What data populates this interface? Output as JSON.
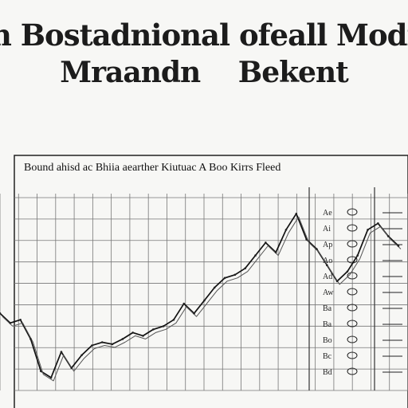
{
  "header": {
    "title_line_1": "n Bostadnional ofeall Modit",
    "title_line_2_left": "Mraandn",
    "title_line_2_right": "Bekent"
  },
  "chart_data": {
    "type": "line",
    "title": "Bound ahisd ac Bhiia aearther Kiutuac A Boo Kirrs Fleed",
    "grid": true,
    "x": [
      0,
      1,
      2,
      3,
      4,
      5,
      6,
      7,
      8,
      9,
      10,
      11,
      12,
      13,
      14,
      15,
      16,
      17,
      18,
      19,
      20,
      21,
      22,
      23,
      24,
      25,
      26,
      27,
      28,
      29,
      30,
      31,
      32,
      33,
      34,
      35,
      36,
      37,
      38,
      39
    ],
    "series": [
      {
        "values": [
          120,
          105,
          110,
          80,
          30,
          20,
          60,
          35,
          55,
          70,
          75,
          72,
          80,
          90,
          85,
          95,
          100,
          110,
          135,
          120,
          140,
          160,
          175,
          180,
          190,
          210,
          230,
          215,
          250,
          275,
          235,
          220,
          195,
          170,
          185,
          210,
          250,
          260,
          240,
          225
        ]
      }
    ],
    "ylim": [
      0,
      300
    ],
    "right_panel_marks": [
      "Ae",
      "Ai",
      "Ap",
      "Ao",
      "Ad",
      "Aw",
      "Ba",
      "Ba",
      "Bo",
      "Bc",
      "Bd"
    ]
  }
}
